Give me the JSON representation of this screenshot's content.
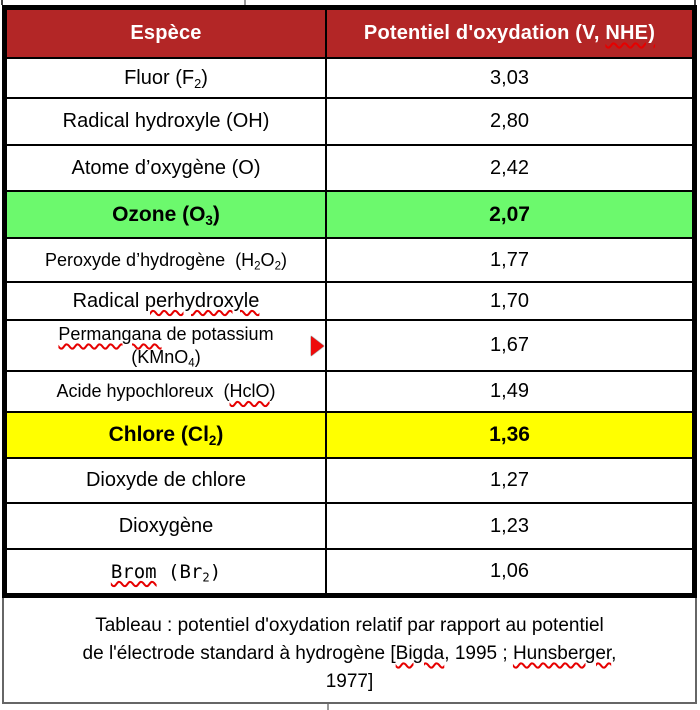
{
  "colors": {
    "header_bg": "#b32626",
    "header_text": "#ffffff",
    "row_green": "#6cf96d",
    "row_yellow": "#ffff00",
    "border": "#000000",
    "spellcheck": "#e60000",
    "marker": "#ee0b0b"
  },
  "table": {
    "headers": {
      "species": "Espèce",
      "potential": [
        {
          "t": "Potentiel d'oxydation (V, "
        },
        {
          "t": "NHE)",
          "misspelled": true
        }
      ]
    },
    "rows": [
      {
        "species": [
          {
            "t": "Fluor (F"
          },
          {
            "t": "2",
            "sub": true
          },
          {
            "t": ")"
          }
        ],
        "value": "3,03"
      },
      {
        "species": [
          {
            "t": "Radical hydroxyle (OH)"
          }
        ],
        "value": "2,80"
      },
      {
        "species": [
          {
            "t": "Atome d’oxygène (O)"
          }
        ],
        "value": "2,42"
      },
      {
        "species": [
          {
            "t": "Ozone (O"
          },
          {
            "t": "3",
            "sub": true
          },
          {
            "t": ")"
          }
        ],
        "value": "2,07",
        "highlight": "green",
        "bold": true
      },
      {
        "species": [
          {
            "t": "Peroxyde d’hydrogène  (H"
          },
          {
            "t": "2",
            "sub": true
          },
          {
            "t": "O"
          },
          {
            "t": "2",
            "sub": true
          },
          {
            "t": ")"
          }
        ],
        "value": "1,77",
        "compact": true
      },
      {
        "species": [
          {
            "t": "Radical "
          },
          {
            "t": "perhydroxyle",
            "misspelled": true
          }
        ],
        "value": "1,70"
      },
      {
        "species": [
          {
            "t": "Permangana",
            "misspelled": true
          },
          {
            "t": " de potassium"
          },
          {
            "br": true
          },
          {
            "t": "(KMnO"
          },
          {
            "t": "4",
            "sub": true
          },
          {
            "t": ")"
          }
        ],
        "value": "1,67",
        "compact": true,
        "marker": true
      },
      {
        "species": [
          {
            "t": "Acide hypochloreux  ("
          },
          {
            "t": "HclO",
            "misspelled": true
          },
          {
            "t": ")"
          }
        ],
        "value": "1,49",
        "compact": true
      },
      {
        "species": [
          {
            "t": "Chlore (Cl"
          },
          {
            "t": "2",
            "sub": true
          },
          {
            "t": ")"
          }
        ],
        "value": "1,36",
        "highlight": "yellow",
        "bold": true
      },
      {
        "species": [
          {
            "t": "Dioxyde de chlore"
          }
        ],
        "value": "1,27"
      },
      {
        "species": [
          {
            "t": "Dioxygène"
          }
        ],
        "value": "1,23"
      },
      {
        "species": [
          {
            "t": "Brom",
            "misspelled": true
          },
          {
            "t": " (Br"
          },
          {
            "t": "2",
            "sub": true
          },
          {
            "t": ")"
          }
        ],
        "value": "1,06",
        "mono": true
      }
    ]
  },
  "caption": [
    {
      "t": "Tableau : potentiel d'oxydation relatif par rapport au potentiel"
    },
    {
      "br": true
    },
    {
      "t": "de l'électrode standard à hydrogène ["
    },
    {
      "t": "Bigda",
      "misspelled": true
    },
    {
      "t": ", 1995 ; "
    },
    {
      "t": "Hunsberger",
      "misspelled": true
    },
    {
      "t": ","
    },
    {
      "br": true
    },
    {
      "t": "1977]"
    }
  ]
}
